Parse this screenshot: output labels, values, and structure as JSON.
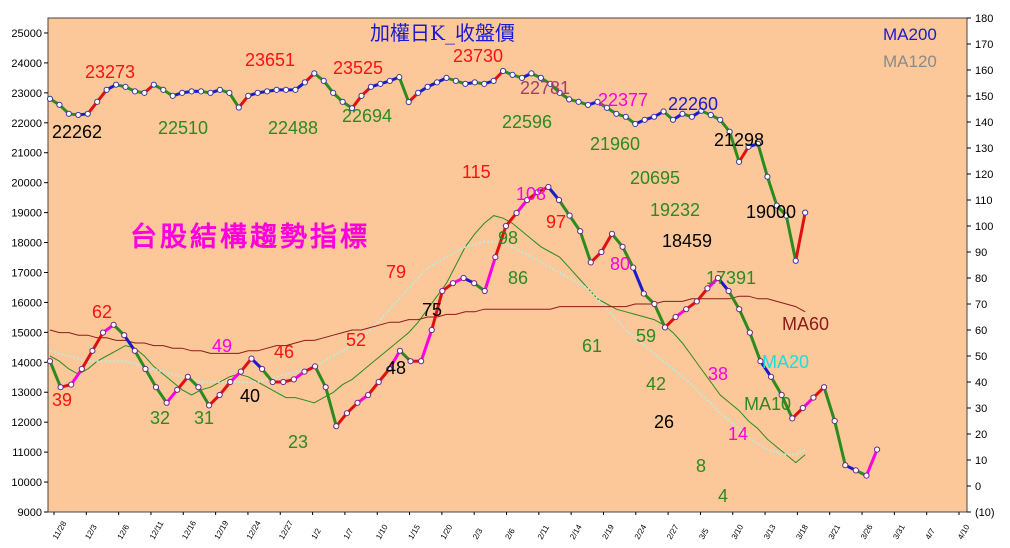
{
  "chart_data": {
    "type": "line",
    "title": "加權日K_收盤價",
    "subtitle": "台股結構趨勢指標",
    "legend": [
      {
        "label": "MA200",
        "color": "#1a1ad0"
      },
      {
        "label": "MA120",
        "color": "#8a8a8a"
      }
    ],
    "left_axis": {
      "min": 9000,
      "max": 25500,
      "ticks": [
        9000,
        10000,
        11000,
        12000,
        13000,
        14000,
        15000,
        16000,
        17000,
        18000,
        19000,
        20000,
        21000,
        22000,
        23000,
        24000,
        25000
      ]
    },
    "right_axis": {
      "min": -10,
      "max": 180,
      "ticks": [
        -10,
        0,
        10,
        20,
        30,
        40,
        50,
        60,
        70,
        80,
        90,
        100,
        110,
        120,
        130,
        140,
        150,
        160,
        170,
        180
      ],
      "tick_labels": [
        "(10)",
        "0",
        "10",
        "20",
        "30",
        "40",
        "50",
        "60",
        "70",
        "80",
        "90",
        "100",
        "110",
        "120",
        "130",
        "140",
        "150",
        "160",
        "170",
        "180"
      ]
    },
    "x_tick_labels": [
      "11/28",
      "12/3",
      "12/6",
      "12/11",
      "12/16",
      "12/19",
      "12/24",
      "12/27",
      "1/2",
      "1/7",
      "1/10",
      "1/15",
      "1/20",
      "2/3",
      "2/6",
      "2/11",
      "2/14",
      "2/19",
      "2/24",
      "2/27",
      "3/5",
      "3/10",
      "3/13",
      "3/18",
      "3/21",
      "3/26",
      "3/31",
      "4/7",
      "4/10"
    ],
    "price_series": {
      "name": "加權日K_收盤價",
      "values": [
        22800,
        22600,
        22300,
        22262,
        22300,
        22700,
        23100,
        23273,
        23200,
        23050,
        23000,
        23273,
        23100,
        22900,
        23000,
        23050,
        23050,
        23000,
        23100,
        23000,
        22510,
        22900,
        23000,
        23050,
        23100,
        23100,
        23100,
        23350,
        23651,
        23400,
        23000,
        22700,
        22488,
        22900,
        23200,
        23300,
        23400,
        23525,
        22694,
        23000,
        23200,
        23350,
        23500,
        23400,
        23300,
        23350,
        23300,
        23400,
        23730,
        23600,
        23500,
        23650,
        23500,
        23300,
        23000,
        22781,
        22700,
        22596,
        22700,
        22500,
        22300,
        22200,
        21960,
        22100,
        22200,
        22377,
        22100,
        22300,
        22200,
        22400,
        22260,
        22100,
        21700,
        20695,
        21200,
        21298,
        20200,
        19232,
        18900,
        17391,
        19000
      ]
    },
    "indicator_series": {
      "name": "指標",
      "values": [
        48,
        38,
        39,
        45,
        52,
        59,
        62,
        58,
        52,
        45,
        38,
        32,
        37,
        42,
        38,
        31,
        35,
        40,
        44,
        49,
        45,
        40,
        40,
        41,
        44,
        46,
        38,
        23,
        28,
        32,
        35,
        40,
        45,
        52,
        48,
        48,
        60,
        75,
        78,
        80,
        78,
        75,
        88,
        100,
        105,
        110,
        113,
        115,
        110,
        104,
        98,
        86,
        90,
        97,
        92,
        84,
        74,
        70,
        61,
        65,
        68,
        71,
        76,
        80,
        75,
        68,
        59,
        48,
        42,
        35,
        26,
        30,
        34,
        38,
        25,
        8,
        6,
        4,
        14
      ]
    },
    "moving_averages": [
      {
        "name": "MA10",
        "color": "#2c8a1e",
        "values": [
          50,
          48,
          45,
          43,
          45,
          48,
          50,
          52,
          54,
          53,
          50,
          46,
          43,
          40,
          37,
          35,
          37,
          38,
          40,
          42,
          43,
          42,
          40,
          38,
          36,
          34,
          34,
          33,
          32,
          34,
          36,
          39,
          41,
          44,
          47,
          50,
          53,
          56,
          59,
          63,
          68,
          73,
          78,
          85,
          92,
          97,
          101,
          104,
          103,
          101,
          98,
          95,
          92,
          90,
          88,
          84,
          80,
          76,
          72,
          70,
          68,
          67,
          66,
          65,
          64,
          62,
          59,
          55,
          50,
          45,
          40,
          35,
          32,
          29,
          25,
          22,
          18,
          15,
          12,
          9,
          12
        ]
      },
      {
        "name": "MA20",
        "color": "#bfe8d8",
        "values": [
          52,
          51,
          50,
          49,
          48,
          48,
          48,
          48,
          48,
          47,
          46,
          45,
          44,
          43,
          42,
          41,
          40,
          40,
          40,
          40,
          40,
          40,
          40,
          41,
          42,
          43,
          44,
          45,
          46,
          48,
          50,
          52,
          54,
          57,
          60,
          64,
          68,
          72,
          76,
          80,
          84,
          86,
          88,
          90,
          92,
          93,
          94,
          94,
          93,
          92,
          90,
          88,
          86,
          84,
          82,
          80,
          78,
          76,
          72,
          68,
          64,
          60,
          57,
          54,
          51,
          48,
          45,
          42,
          39,
          35,
          32,
          28,
          25,
          22,
          19,
          16,
          14,
          13,
          12,
          12,
          14
        ]
      },
      {
        "name": "MA60",
        "color": "#8b1a1a",
        "values": [
          60,
          59,
          59,
          58,
          58,
          57,
          57,
          56,
          56,
          55,
          55,
          54,
          54,
          53,
          53,
          52,
          52,
          51,
          51,
          51,
          51,
          52,
          52,
          53,
          54,
          54,
          55,
          56,
          56,
          57,
          58,
          59,
          60,
          60,
          61,
          62,
          63,
          63,
          64,
          64,
          65,
          65,
          66,
          66,
          67,
          67,
          68,
          68,
          68,
          68,
          68,
          68,
          68,
          68,
          69,
          69,
          69,
          69,
          69,
          69,
          69,
          69,
          70,
          70,
          70,
          71,
          71,
          71,
          72,
          72,
          72,
          72,
          72,
          73,
          73,
          72,
          72,
          71,
          70,
          69,
          67
        ]
      }
    ],
    "annotations": [
      {
        "text": "23273",
        "color": "#ff1010"
      },
      {
        "text": "23651",
        "color": "#ff1010"
      },
      {
        "text": "23525",
        "color": "#ff1010"
      },
      {
        "text": "23730",
        "color": "#ff1010"
      },
      {
        "text": "22781",
        "color": "#a0406a"
      },
      {
        "text": "22377",
        "color": "#ff00dd"
      },
      {
        "text": "22260",
        "color": "#1a1ad0"
      },
      {
        "text": "22262",
        "color": "#000000"
      },
      {
        "text": "22510",
        "color": "#2c8a1e"
      },
      {
        "text": "22488",
        "color": "#2c8a1e"
      },
      {
        "text": "22694",
        "color": "#2c8a1e"
      },
      {
        "text": "22596",
        "color": "#2c8a1e"
      },
      {
        "text": "21960",
        "color": "#2c8a1e"
      },
      {
        "text": "20695",
        "color": "#2c8a1e"
      },
      {
        "text": "21298",
        "color": "#000000"
      },
      {
        "text": "19232",
        "color": "#2c8a1e"
      },
      {
        "text": "18459",
        "color": "#000000"
      },
      {
        "text": "19000",
        "color": "#000000"
      },
      {
        "text": "17391",
        "color": "#2c8a1e"
      },
      {
        "text": "115",
        "color": "#ff1010"
      },
      {
        "text": "108",
        "color": "#ff00dd"
      },
      {
        "text": "97",
        "color": "#ff1010"
      },
      {
        "text": "98",
        "color": "#2c8a1e"
      },
      {
        "text": "86",
        "color": "#2c8a1e"
      },
      {
        "text": "80",
        "color": "#ff00dd"
      },
      {
        "text": "79",
        "color": "#ff1010"
      },
      {
        "text": "75",
        "color": "#000000"
      },
      {
        "text": "62",
        "color": "#ff1010"
      },
      {
        "text": "61",
        "color": "#2c8a1e"
      },
      {
        "text": "59",
        "color": "#2c8a1e"
      },
      {
        "text": "52",
        "color": "#ff1010"
      },
      {
        "text": "49",
        "color": "#ff00dd"
      },
      {
        "text": "48",
        "color": "#000000"
      },
      {
        "text": "46",
        "color": "#ff1010"
      },
      {
        "text": "42",
        "color": "#2c8a1e"
      },
      {
        "text": "40",
        "color": "#000000"
      },
      {
        "text": "39",
        "color": "#ff1010"
      },
      {
        "text": "38",
        "color": "#ff00dd"
      },
      {
        "text": "32",
        "color": "#2c8a1e"
      },
      {
        "text": "31",
        "color": "#2c8a1e"
      },
      {
        "text": "26",
        "color": "#000000"
      },
      {
        "text": "23",
        "color": "#2c8a1e"
      },
      {
        "text": "14",
        "color": "#ff00dd"
      },
      {
        "text": "8",
        "color": "#2c8a1e"
      },
      {
        "text": "4",
        "color": "#2c8a1e"
      }
    ],
    "plot_background": "#fcc89a"
  }
}
